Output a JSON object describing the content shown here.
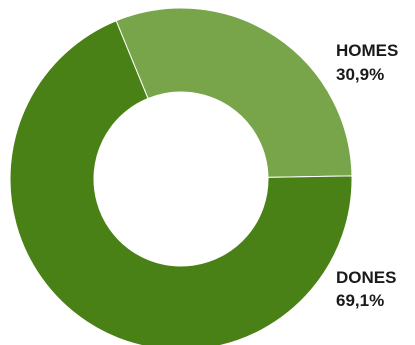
{
  "chart_data": {
    "type": "pie",
    "variant": "donut",
    "slices": [
      {
        "label": "HOMES",
        "value": 30.9,
        "value_label": "30,9%",
        "color": "#78a54a"
      },
      {
        "label": "DONES",
        "value": 69.1,
        "value_label": "69,1%",
        "color": "#4a8117"
      }
    ]
  }
}
